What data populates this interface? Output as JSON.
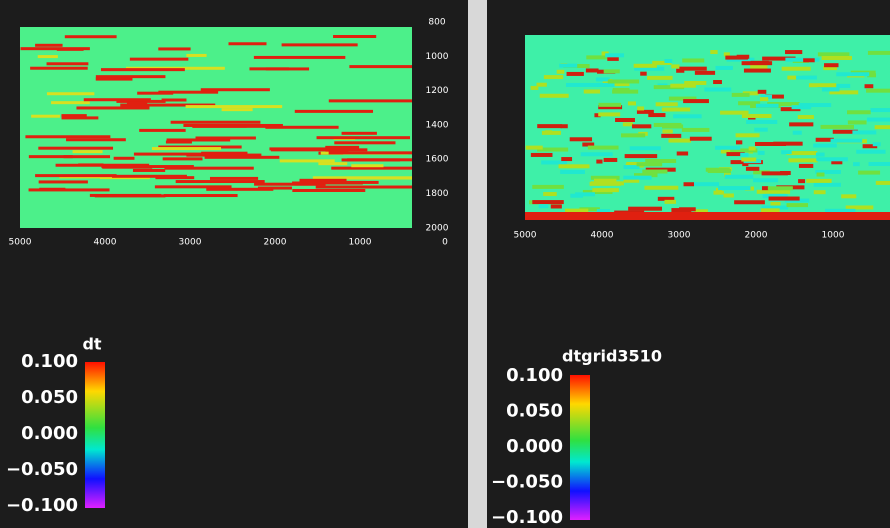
{
  "panels": [
    {
      "x_ticks": [
        "5000",
        "4000",
        "3000",
        "2000",
        "1000",
        "0"
      ],
      "y_ticks": [
        "800",
        "1000",
        "1200",
        "1400",
        "1600",
        "1800",
        "2000"
      ],
      "colorbar": {
        "title": "dt",
        "ticks": [
          "0.100",
          "0.050",
          "0.000",
          "−0.050",
          "−0.100"
        ]
      }
    },
    {
      "x_ticks": [
        "5000",
        "4000",
        "3000",
        "2000",
        "1000"
      ],
      "colorbar": {
        "title": "dtgrid3510",
        "ticks": [
          "0.100",
          "0.050",
          "0.000",
          "−0.050",
          "−0.100"
        ]
      }
    }
  ]
}
